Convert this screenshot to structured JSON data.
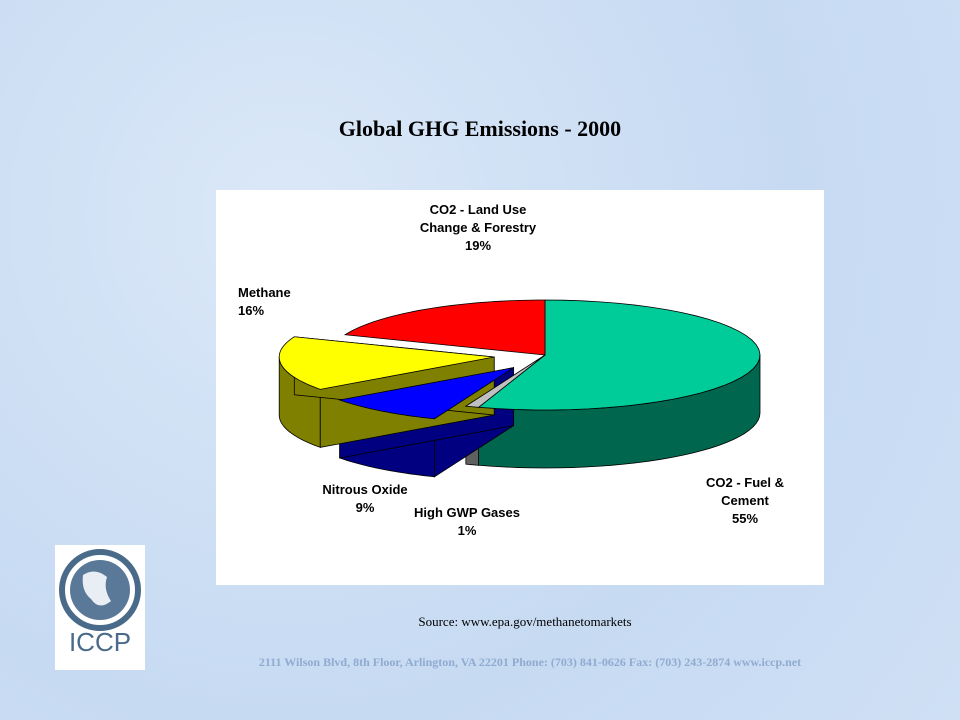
{
  "chart_data": {
    "type": "pie",
    "title": "Global GHG Emissions - 2000",
    "categories": [
      "CO2 - Fuel & Cement",
      "High GWP Gases",
      "Nitrous Oxide",
      "Methane",
      "CO2 - Land Use Change & Forestry"
    ],
    "values": [
      55,
      1,
      9,
      16,
      19
    ],
    "value_labels": [
      "55%",
      "1%",
      "9%",
      "16%",
      "19%"
    ],
    "colors": [
      "#00cc99",
      "#c0c0c0",
      "#0000ff",
      "#ffff00",
      "#ff0000"
    ],
    "source": "Source: www.epa.gov/methanetomarkets"
  },
  "logo": {
    "text": "ICCP"
  },
  "footer": "2111 Wilson Blvd, 8th Floor, Arlington, VA 22201 Phone: (703) 841-0626 Fax: (703) 243-2874 www.iccp.net"
}
